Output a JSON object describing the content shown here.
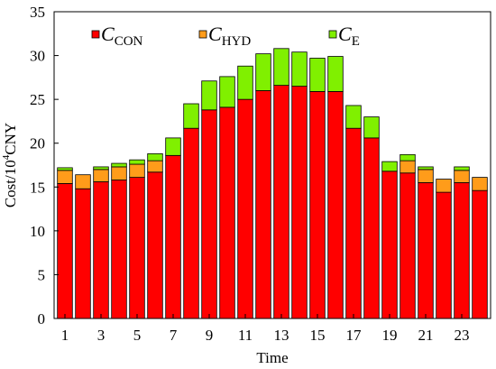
{
  "chart_data": {
    "type": "bar",
    "stacked": true,
    "x": [
      1,
      2,
      3,
      4,
      5,
      6,
      7,
      8,
      9,
      10,
      11,
      12,
      13,
      14,
      15,
      16,
      17,
      18,
      19,
      20,
      21,
      22,
      23,
      24
    ],
    "x_tick_labels": [
      "1",
      "3",
      "5",
      "7",
      "9",
      "11",
      "13",
      "15",
      "17",
      "19",
      "21",
      "23"
    ],
    "y_tick_labels": [
      "0",
      "5",
      "10",
      "15",
      "20",
      "25",
      "30",
      "35"
    ],
    "xlabel": "Time",
    "ylabel": {
      "prefix": "Cost/10",
      "sup": "4",
      "suffix": "CNY"
    },
    "ylim": [
      0,
      35
    ],
    "xlim": [
      0.4,
      24.6
    ],
    "grid": false,
    "legend_position": "top",
    "series": [
      {
        "name": "C_CON",
        "label_main": "C",
        "label_sub": "CON",
        "color": "#ff0000",
        "values": [
          15.4,
          14.8,
          15.6,
          15.8,
          16.1,
          16.7,
          18.6,
          21.7,
          23.8,
          24.1,
          25.0,
          26.0,
          26.6,
          26.5,
          25.9,
          25.9,
          21.7,
          20.6,
          16.8,
          16.6,
          15.5,
          14.4,
          15.5,
          14.6
        ]
      },
      {
        "name": "C_HYD",
        "label_main": "C",
        "label_sub": "HYD",
        "color": "#ff9c1a",
        "values": [
          1.5,
          1.6,
          1.4,
          1.5,
          1.5,
          1.3,
          0,
          0,
          0,
          0,
          0,
          0,
          0,
          0,
          0,
          0,
          0,
          0,
          0,
          1.4,
          1.5,
          1.5,
          1.4,
          1.5
        ]
      },
      {
        "name": "C_E",
        "label_main": "C",
        "label_sub": "E",
        "color": "#80f000",
        "values": [
          0.3,
          0,
          0.3,
          0.4,
          0.5,
          0.8,
          2.0,
          2.8,
          3.3,
          3.5,
          3.8,
          4.2,
          4.2,
          3.9,
          3.8,
          4.0,
          2.6,
          2.4,
          1.1,
          0.7,
          0.3,
          0,
          0.4,
          0
        ]
      }
    ]
  }
}
